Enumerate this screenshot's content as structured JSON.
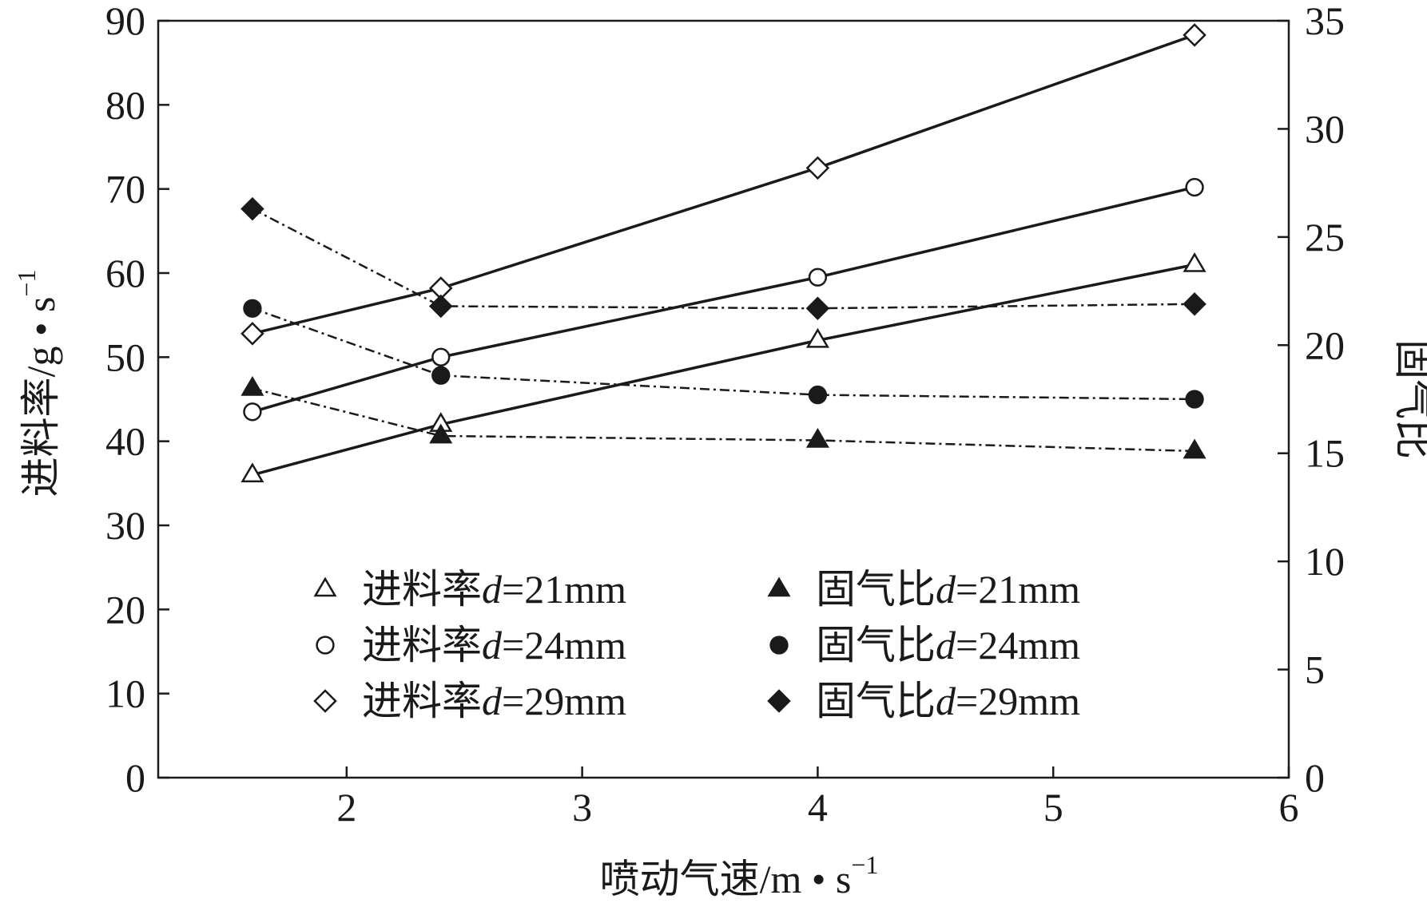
{
  "chart_data": {
    "type": "line",
    "title": "",
    "xlabel": "喷动气速/m • s",
    "xlabel_sup": "−1",
    "ylabel_left": "进料率/g • s",
    "ylabel_left_sup": "−1",
    "ylabel_right": "固气比",
    "xlim": [
      1.2,
      6
    ],
    "ylim_left": [
      0,
      90
    ],
    "ylim_right": [
      0,
      35
    ],
    "xticks": [
      2,
      3,
      4,
      5,
      6
    ],
    "yticks_left": [
      0,
      10,
      20,
      30,
      40,
      50,
      60,
      70,
      80,
      90
    ],
    "yticks_right": [
      0,
      5,
      10,
      15,
      20,
      25,
      30,
      35
    ],
    "grid": false,
    "legend_position": "bottom-center",
    "x": [
      1.6,
      2.4,
      4.0,
      5.6
    ],
    "series": [
      {
        "name_prefix": "进料率",
        "name_var": "d",
        "name_suffix": "=21mm",
        "axis": "left",
        "marker": "triangle",
        "filled": false,
        "line": "solid",
        "values": [
          36,
          42,
          52,
          61
        ]
      },
      {
        "name_prefix": "进料率",
        "name_var": "d",
        "name_suffix": "=24mm",
        "axis": "left",
        "marker": "circle",
        "filled": false,
        "line": "solid",
        "values": [
          43.5,
          50,
          59.5,
          70.2
        ]
      },
      {
        "name_prefix": "进料率",
        "name_var": "d",
        "name_suffix": "=29mm",
        "axis": "left",
        "marker": "diamond",
        "filled": false,
        "line": "solid",
        "values": [
          52.8,
          58.2,
          72.5,
          88.3
        ]
      },
      {
        "name_prefix": "固气比",
        "name_var": "d",
        "name_suffix": "=21mm",
        "axis": "right",
        "marker": "triangle",
        "filled": true,
        "line": "dashdot",
        "values": [
          18.0,
          15.8,
          15.6,
          15.1
        ]
      },
      {
        "name_prefix": "固气比",
        "name_var": "d",
        "name_suffix": "=24mm",
        "axis": "right",
        "marker": "circle",
        "filled": true,
        "line": "dashdot",
        "values": [
          21.7,
          18.6,
          17.7,
          17.5
        ]
      },
      {
        "name_prefix": "固气比",
        "name_var": "d",
        "name_suffix": "=29mm",
        "axis": "right",
        "marker": "diamond",
        "filled": true,
        "line": "dashdot",
        "values": [
          26.3,
          21.8,
          21.7,
          21.9
        ]
      }
    ]
  }
}
